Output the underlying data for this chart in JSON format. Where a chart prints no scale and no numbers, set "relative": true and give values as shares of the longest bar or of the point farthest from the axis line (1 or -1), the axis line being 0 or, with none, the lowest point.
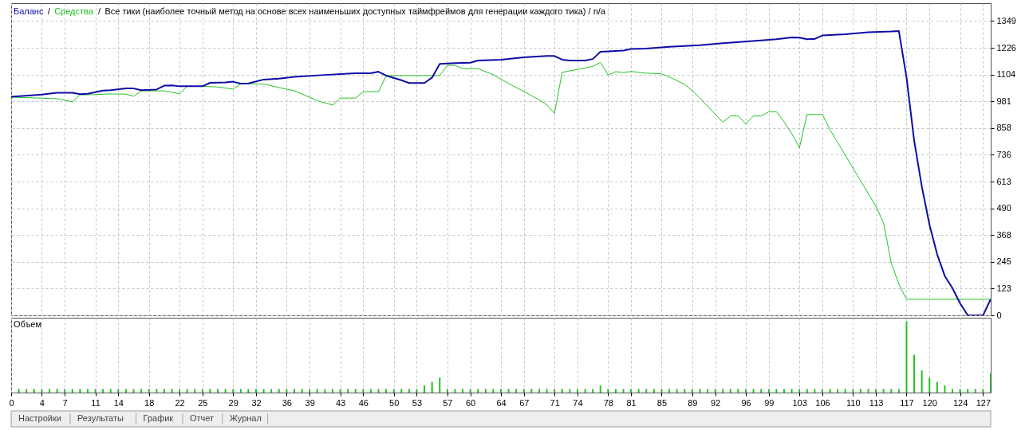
{
  "chart_data": [
    {
      "type": "line",
      "title": "Все тики (наиболее точный метод на основе всех наименьших доступных таймфреймов для генерации каждого тика) / n/a",
      "annotations": [
        "/",
        "/"
      ],
      "legend": "top left",
      "grid": true,
      "tick_labels": "y",
      "xlim": [
        0,
        128
      ],
      "xticks": [
        0,
        4,
        7,
        11,
        14,
        18,
        22,
        25,
        29,
        32,
        36,
        39,
        43,
        46,
        50,
        53,
        57,
        60,
        64,
        67,
        71,
        74,
        78,
        81,
        85,
        89,
        92,
        96,
        99,
        103,
        106,
        110,
        113,
        117,
        120,
        124,
        127
      ],
      "ylim": [
        0,
        1431
      ],
      "yticks": [
        0,
        123,
        245,
        368,
        490,
        613,
        736,
        858,
        981,
        1104,
        1226,
        1349
      ],
      "series": [
        {
          "name": "Баланс",
          "color": "#0c0ca8",
          "x": [
            0,
            3,
            4,
            6,
            8,
            9,
            10,
            12,
            13,
            15,
            16,
            17,
            19,
            20,
            21,
            22,
            25,
            26,
            28,
            29,
            30,
            31,
            33,
            35,
            37,
            41,
            44,
            45,
            47,
            48,
            49,
            51,
            52,
            54,
            55,
            56,
            58,
            60,
            61,
            64,
            67,
            70,
            71,
            72,
            73,
            75,
            76,
            77,
            80,
            81,
            83,
            86,
            90,
            93,
            98,
            100,
            102,
            103,
            104,
            105,
            106,
            109,
            112,
            115,
            116,
            117,
            118,
            119,
            120,
            121,
            122,
            123,
            124,
            125,
            127,
            128
          ],
          "values": [
            1002,
            1009,
            1012,
            1020,
            1020,
            1014,
            1016,
            1030,
            1032,
            1040,
            1040,
            1032,
            1035,
            1053,
            1054,
            1050,
            1050,
            1066,
            1068,
            1071,
            1062,
            1063,
            1081,
            1085,
            1093,
            1102,
            1108,
            1110,
            1110,
            1117,
            1099,
            1078,
            1065,
            1065,
            1090,
            1153,
            1156,
            1158,
            1168,
            1172,
            1183,
            1189,
            1189,
            1172,
            1168,
            1168,
            1175,
            1208,
            1214,
            1221,
            1223,
            1231,
            1238,
            1248,
            1260,
            1266,
            1274,
            1273,
            1266,
            1267,
            1283,
            1289,
            1298,
            1301,
            1303,
            1090,
            800,
            590,
            415,
            280,
            180,
            125,
            55,
            0,
            0,
            74
          ]
        },
        {
          "name": "Средства",
          "color": "#22c322",
          "x": [
            0,
            3,
            6,
            8,
            9,
            10,
            13,
            15,
            16,
            17,
            20,
            22,
            23,
            25,
            27,
            29,
            30,
            33,
            35,
            37,
            40,
            42,
            43,
            45,
            46,
            48,
            49,
            56,
            57,
            58,
            59,
            61,
            63,
            65,
            69,
            70,
            71,
            72,
            76,
            77,
            78,
            79,
            80,
            81,
            83,
            85,
            86,
            88,
            89,
            90,
            93,
            94,
            95,
            96,
            97,
            98,
            99,
            100,
            101,
            102,
            103,
            104,
            106,
            107,
            113,
            114,
            115,
            116,
            117,
            128
          ],
          "values": [
            1000,
            997,
            993,
            979,
            1011,
            1011,
            1015,
            1014,
            1004,
            1029,
            1029,
            1016,
            1050,
            1050,
            1047,
            1037,
            1062,
            1061,
            1044,
            1030,
            984,
            964,
            996,
            996,
            1025,
            1025,
            1099,
            1099,
            1146,
            1146,
            1131,
            1131,
            1103,
            1063,
            988,
            965,
            926,
            1114,
            1141,
            1159,
            1102,
            1117,
            1113,
            1118,
            1110,
            1107,
            1093,
            1059,
            1030,
            996,
            885,
            914,
            914,
            877,
            914,
            914,
            933,
            933,
            887,
            833,
            768,
            921,
            921,
            851,
            500,
            424,
            240,
            143,
            74,
            74
          ]
        }
      ]
    },
    {
      "type": "bar",
      "title": "Объем",
      "relative": true,
      "color": "#22c322",
      "grid": "x",
      "tick_labels": "x",
      "xlim": [
        0,
        128
      ],
      "xticks": [
        0,
        4,
        7,
        11,
        14,
        18,
        22,
        25,
        29,
        32,
        36,
        39,
        43,
        46,
        50,
        53,
        57,
        60,
        64,
        67,
        71,
        74,
        78,
        81,
        85,
        89,
        92,
        96,
        99,
        103,
        106,
        110,
        113,
        117,
        120,
        124,
        127
      ],
      "x": [
        1,
        2,
        3,
        4,
        5,
        6,
        7,
        8,
        9,
        10,
        11,
        12,
        13,
        14,
        15,
        16,
        17,
        18,
        19,
        20,
        21,
        22,
        23,
        24,
        25,
        26,
        27,
        28,
        29,
        30,
        31,
        32,
        33,
        34,
        35,
        36,
        37,
        38,
        39,
        40,
        41,
        42,
        43,
        44,
        45,
        46,
        47,
        48,
        49,
        50,
        51,
        52,
        53,
        54,
        55,
        56,
        57,
        58,
        59,
        60,
        61,
        62,
        63,
        64,
        65,
        66,
        67,
        68,
        69,
        70,
        71,
        72,
        73,
        74,
        75,
        76,
        77,
        78,
        79,
        80,
        81,
        82,
        83,
        84,
        85,
        86,
        87,
        88,
        89,
        90,
        91,
        92,
        93,
        94,
        95,
        96,
        97,
        98,
        99,
        100,
        101,
        102,
        103,
        104,
        105,
        106,
        107,
        108,
        109,
        110,
        111,
        112,
        113,
        114,
        115,
        116,
        117,
        118,
        119,
        120,
        121,
        122,
        123,
        124,
        125,
        126,
        127,
        128
      ],
      "values": [
        0.05,
        0.05,
        0.05,
        0.05,
        0.05,
        0.05,
        0.05,
        0.05,
        0.05,
        0.05,
        0.05,
        0.05,
        0.05,
        0.05,
        0.05,
        0.05,
        0.05,
        0.05,
        0.05,
        0.05,
        0.05,
        0.05,
        0.05,
        0.05,
        0.05,
        0.05,
        0.05,
        0.05,
        0.05,
        0.05,
        0.05,
        0.05,
        0.05,
        0.05,
        0.05,
        0.05,
        0.05,
        0.05,
        0.05,
        0.05,
        0.05,
        0.05,
        0.05,
        0.05,
        0.05,
        0.05,
        0.05,
        0.05,
        0.05,
        0.05,
        0.05,
        0.05,
        0.05,
        0.1,
        0.15,
        0.21,
        0.05,
        0.05,
        0.05,
        0.05,
        0.05,
        0.05,
        0.05,
        0.05,
        0.05,
        0.05,
        0.05,
        0.05,
        0.05,
        0.05,
        0.05,
        0.05,
        0.05,
        0.05,
        0.05,
        0.05,
        0.1,
        0.05,
        0.05,
        0.05,
        0.05,
        0.05,
        0.05,
        0.05,
        0.05,
        0.05,
        0.05,
        0.05,
        0.05,
        0.05,
        0.05,
        0.05,
        0.05,
        0.05,
        0.05,
        0.05,
        0.05,
        0.05,
        0.05,
        0.05,
        0.05,
        0.05,
        0.05,
        0.05,
        0.05,
        0.05,
        0.05,
        0.05,
        0.05,
        0.05,
        0.05,
        0.05,
        0.05,
        0.05,
        0.05,
        0.05,
        1,
        0.53,
        0.31,
        0.21,
        0.15,
        0.1,
        0.05,
        0.05,
        0.05,
        0.05,
        0.05,
        0.27
      ]
    },
    {
      "type": "other",
      "annotations": [
        "Настройки",
        "Результаты",
        "График",
        "Отчет",
        "Журнал"
      ]
    }
  ]
}
